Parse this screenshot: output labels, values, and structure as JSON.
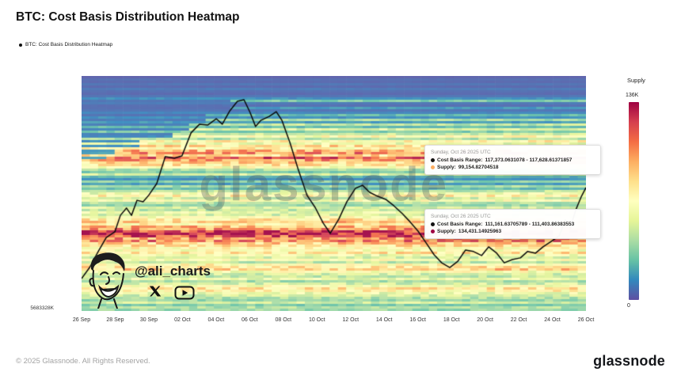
{
  "page": {
    "title": "BTC: Cost Basis Distribution Heatmap",
    "legend_label": "BTC: Cost Basis Distribution Heatmap",
    "watermark": "glassnode",
    "footer": "© 2025 Glassnode. All Rights Reserved.",
    "brand": "glassnode",
    "attribution": {
      "handle": "@ali_charts"
    }
  },
  "axes": {
    "x_ticks": [
      "26 Sep",
      "28 Sep",
      "30 Sep",
      "02 Oct",
      "04 Oct",
      "06 Oct",
      "08 Oct",
      "10 Oct",
      "12 Oct",
      "14 Oct",
      "16 Oct",
      "18 Oct",
      "20 Oct",
      "22 Oct",
      "24 Oct",
      "26 Oct"
    ],
    "y_left_label": "5683328K"
  },
  "colorbar": {
    "title": "Supply",
    "max_label": "136K",
    "min_label": "0"
  },
  "tooltips": [
    {
      "date": "Sunday, Oct 26 2025 UTC",
      "rows": [
        {
          "label": "Cost Basis Range:",
          "value": "117,373.0631078 - 117,628.61371857",
          "dot_color": "#111111"
        },
        {
          "label": "Supply:",
          "value": "99,154.82704518",
          "dot_color": "#fdae61"
        }
      ]
    },
    {
      "date": "Sunday, Oct 26 2025 UTC",
      "rows": [
        {
          "label": "Cost Basis Range:",
          "value": "111,161.63705789 - 111,403.86383553",
          "dot_color": "#111111"
        },
        {
          "label": "Supply:",
          "value": "134,431.14925963",
          "dot_color": "#9e0142"
        }
      ]
    }
  ],
  "chart_data": {
    "type": "heatmap",
    "title": "BTC: Cost Basis Distribution Heatmap",
    "x_range": [
      "26 Sep",
      "26 Oct"
    ],
    "x_tick_labels": [
      "26 Sep",
      "28 Sep",
      "30 Sep",
      "02 Oct",
      "04 Oct",
      "06 Oct",
      "08 Oct",
      "10 Oct",
      "12 Oct",
      "14 Oct",
      "16 Oct",
      "18 Oct",
      "20 Oct",
      "22 Oct",
      "24 Oct",
      "26 Oct"
    ],
    "y_axis_bottom_label": "5683328K",
    "colorbar": {
      "label": "Supply",
      "min": 0,
      "max": 136000,
      "max_label": "136K",
      "min_label": "0"
    },
    "colormap": [
      "#5e4fa2",
      "#3288bd",
      "#66c2a5",
      "#abdda4",
      "#e6f598",
      "#ffffbf",
      "#fee08b",
      "#fdae61",
      "#f46d43",
      "#d53e4f",
      "#9e0142"
    ],
    "highlighted_bands": [
      {
        "cost_basis_range": "117,373.0631078 - 117,628.61371857",
        "supply": "99,154.82704518"
      },
      {
        "cost_basis_range": "111,161.63705789 - 111,403.86383553",
        "supply": "134,431.14925963"
      }
    ],
    "price_line": [
      [
        0.0,
        0.862
      ],
      [
        0.016,
        0.815
      ],
      [
        0.033,
        0.747
      ],
      [
        0.049,
        0.687
      ],
      [
        0.066,
        0.663
      ],
      [
        0.077,
        0.593
      ],
      [
        0.089,
        0.562
      ],
      [
        0.099,
        0.593
      ],
      [
        0.11,
        0.529
      ],
      [
        0.122,
        0.535
      ],
      [
        0.133,
        0.508
      ],
      [
        0.149,
        0.458
      ],
      [
        0.166,
        0.343
      ],
      [
        0.184,
        0.35
      ],
      [
        0.199,
        0.34
      ],
      [
        0.217,
        0.242
      ],
      [
        0.234,
        0.205
      ],
      [
        0.25,
        0.209
      ],
      [
        0.267,
        0.182
      ],
      [
        0.279,
        0.205
      ],
      [
        0.294,
        0.148
      ],
      [
        0.309,
        0.108
      ],
      [
        0.322,
        0.101
      ],
      [
        0.334,
        0.155
      ],
      [
        0.345,
        0.215
      ],
      [
        0.356,
        0.188
      ],
      [
        0.372,
        0.172
      ],
      [
        0.386,
        0.152
      ],
      [
        0.397,
        0.188
      ],
      [
        0.413,
        0.283
      ],
      [
        0.43,
        0.401
      ],
      [
        0.447,
        0.508
      ],
      [
        0.463,
        0.559
      ],
      [
        0.479,
        0.626
      ],
      [
        0.493,
        0.67
      ],
      [
        0.51,
        0.609
      ],
      [
        0.526,
        0.535
      ],
      [
        0.543,
        0.478
      ],
      [
        0.557,
        0.465
      ],
      [
        0.571,
        0.495
      ],
      [
        0.587,
        0.512
      ],
      [
        0.603,
        0.525
      ],
      [
        0.619,
        0.552
      ],
      [
        0.636,
        0.586
      ],
      [
        0.651,
        0.62
      ],
      [
        0.667,
        0.66
      ],
      [
        0.683,
        0.71
      ],
      [
        0.699,
        0.761
      ],
      [
        0.714,
        0.795
      ],
      [
        0.73,
        0.815
      ],
      [
        0.746,
        0.788
      ],
      [
        0.761,
        0.741
      ],
      [
        0.777,
        0.747
      ],
      [
        0.793,
        0.764
      ],
      [
        0.807,
        0.727
      ],
      [
        0.823,
        0.754
      ],
      [
        0.838,
        0.795
      ],
      [
        0.854,
        0.781
      ],
      [
        0.87,
        0.774
      ],
      [
        0.884,
        0.747
      ],
      [
        0.9,
        0.754
      ],
      [
        0.915,
        0.727
      ],
      [
        0.931,
        0.704
      ],
      [
        0.947,
        0.68
      ],
      [
        0.959,
        0.613
      ],
      [
        0.969,
        0.646
      ],
      [
        0.98,
        0.569
      ],
      [
        0.991,
        0.512
      ],
      [
        1.0,
        0.475
      ]
    ],
    "heat_rows": [
      [
        0.02
      ],
      [
        0.04
      ],
      [
        0.03
      ],
      [
        0.05
      ],
      [
        0.03
      ],
      [
        0.06
      ],
      [
        0.04
      ],
      [
        0.03
      ],
      [
        0.05
      ],
      [
        0.1
      ],
      [
        0.22,
        0.3
      ],
      [
        0.06
      ],
      [
        0.04
      ],
      [
        0.12,
        0.3
      ],
      [
        0.05
      ],
      [
        0.08
      ],
      [
        0.18,
        0.25
      ],
      [
        0.1
      ],
      [
        0.28,
        0.25
      ],
      [
        0.12
      ],
      [
        0.32,
        0.22
      ],
      [
        0.18
      ],
      [
        0.38,
        0.22
      ],
      [
        0.22
      ],
      [
        0.35,
        0.18
      ],
      [
        0.48,
        0.18
      ],
      [
        0.3
      ],
      [
        0.52,
        0.12
      ],
      [
        0.42
      ],
      [
        0.58,
        0.12
      ],
      [
        0.52
      ],
      [
        0.66,
        0.06
      ],
      [
        0.74,
        0.06
      ],
      [
        0.6
      ],
      [
        0.8,
        0.05
      ],
      [
        0.7
      ],
      [
        0.62
      ],
      [
        0.55
      ],
      [
        0.46
      ],
      [
        0.3
      ],
      [
        0.22
      ],
      [
        0.36
      ],
      [
        0.16
      ],
      [
        0.1
      ],
      [
        0.24
      ],
      [
        0.12
      ],
      [
        0.28
      ],
      [
        0.18
      ],
      [
        0.32
      ],
      [
        0.42
      ],
      [
        0.52
      ],
      [
        0.36
      ],
      [
        0.46
      ],
      [
        0.3
      ],
      [
        0.26
      ],
      [
        0.38
      ],
      [
        0.32
      ],
      [
        0.42
      ],
      [
        0.36
      ],
      [
        0.46
      ],
      [
        0.56
      ],
      [
        0.62
      ],
      [
        0.52
      ],
      [
        0.66
      ],
      [
        0.72
      ],
      [
        0.86
      ],
      [
        0.97
      ],
      [
        0.82
      ],
      [
        0.72
      ],
      [
        0.76
      ],
      [
        0.62
      ],
      [
        0.56
      ],
      [
        0.5
      ],
      [
        0.46
      ],
      [
        0.56
      ],
      [
        0.42
      ],
      [
        0.36
      ],
      [
        0.46
      ],
      [
        0.32
      ],
      [
        0.5
      ],
      [
        0.56
      ],
      [
        0.62
      ],
      [
        0.46
      ],
      [
        0.36
      ],
      [
        0.32
      ],
      [
        0.42
      ],
      [
        0.28
      ],
      [
        0.36
      ],
      [
        0.46
      ],
      [
        0.56
      ],
      [
        0.52
      ],
      [
        0.42
      ],
      [
        0.36
      ],
      [
        0.3
      ],
      [
        0.26
      ],
      [
        0.36
      ],
      [
        0.22
      ],
      [
        0.3
      ],
      [
        0.26
      ]
    ]
  }
}
